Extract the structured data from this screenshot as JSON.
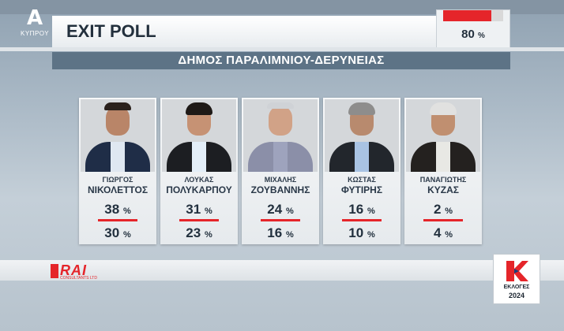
{
  "header": {
    "channel_logo": "A",
    "channel_sub": "ΚΥΠΡΟΥ",
    "title": "EXIT POLL",
    "counted_value": "80",
    "counted_unit": "%",
    "counted_fraction": 0.8,
    "accent_color": "#e5252a"
  },
  "municipality": "ΔΗΜΟΣ ΠΑΡΑΛΙΜΝΙΟΥ-ΔΕΡΥΝΕΙΑΣ",
  "candidates": [
    {
      "first": "ΓΙΩΡΓΟΣ",
      "last": "ΝΙΚΟΛΕΤΤΟΣ",
      "pct_main": "38",
      "pct_second": "30",
      "unit": "%"
    },
    {
      "first": "ΛΟΥΚΑΣ",
      "last": "ΠΟΛΥΚΑΡΠΟΥ",
      "pct_main": "31",
      "pct_second": "23",
      "unit": "%"
    },
    {
      "first": "ΜΙΧΑΛΗΣ",
      "last": "ΖΟΥΒΑΝΝΗΣ",
      "pct_main": "24",
      "pct_second": "16",
      "unit": "%"
    },
    {
      "first": "ΚΩΣΤΑΣ",
      "last": "ΦΥΤΙΡΗΣ",
      "pct_main": "16",
      "pct_second": "10",
      "unit": "%"
    },
    {
      "first": "ΠΑΝΑΓΙΩΤΗΣ",
      "last": "ΚΥΖΑΣ",
      "pct_main": "2",
      "pct_second": "4",
      "unit": "%"
    }
  ],
  "footer": {
    "rai_name": "RAI",
    "rai_sub": "CONSULTANTS LTD",
    "election_label": "ΕΚΛΟΓΕΣ",
    "election_year": "2024"
  }
}
